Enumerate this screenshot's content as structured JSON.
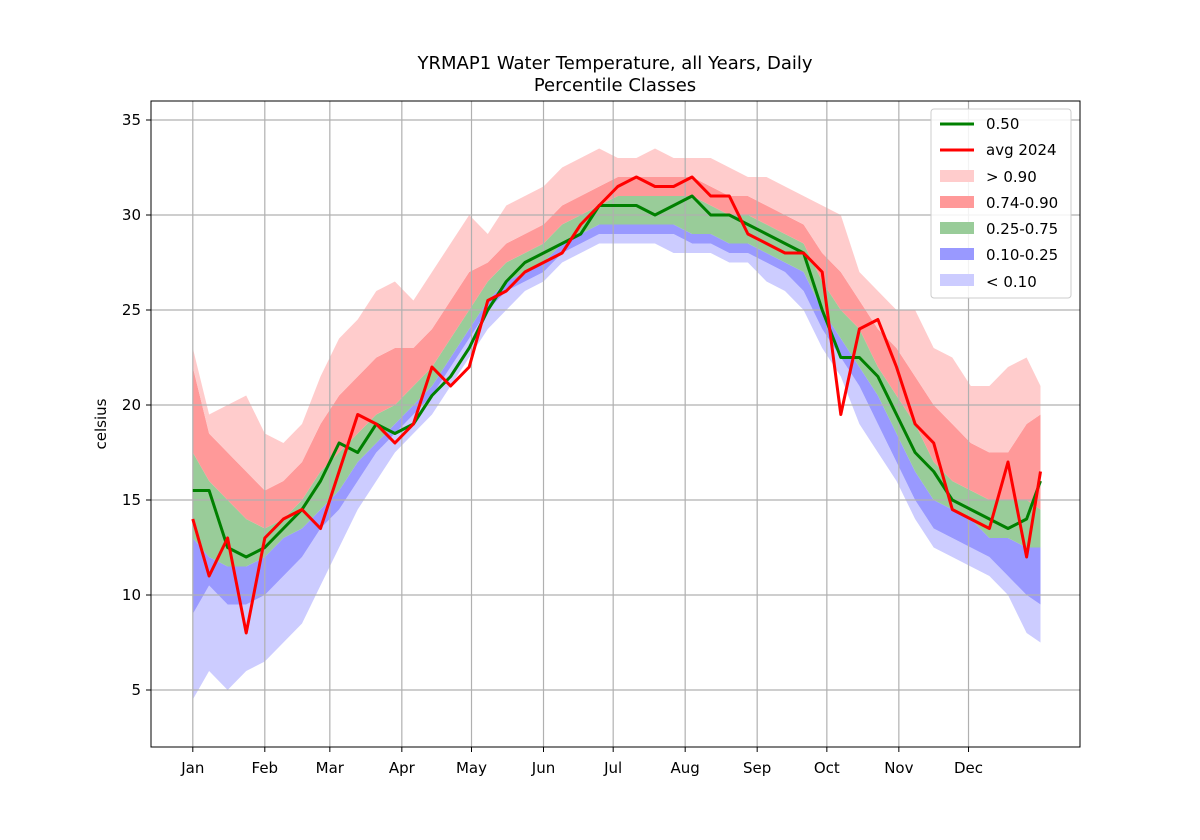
{
  "chart_data": {
    "type": "area",
    "title": "YRMAP1 Water Temperature, all Years, Daily",
    "subtitle": "Percentile Classes",
    "xlabel": "",
    "ylabel": "celsius",
    "x_ticks": [
      "Jan",
      "Feb",
      "Mar",
      "Apr",
      "May",
      "Jun",
      "Jul",
      "Aug",
      "Sep",
      "Oct",
      "Nov",
      "Dec"
    ],
    "x_tick_days": [
      1,
      32,
      60,
      91,
      121,
      152,
      182,
      213,
      244,
      274,
      305,
      335
    ],
    "xlim": [
      -17,
      383
    ],
    "y_ticks": [
      5,
      10,
      15,
      20,
      25,
      30,
      35
    ],
    "ylim": [
      2,
      36
    ],
    "grid": true,
    "legend_position": "top-right",
    "x_days": [
      1,
      8,
      16,
      24,
      32,
      40,
      48,
      56,
      64,
      72,
      80,
      88,
      96,
      104,
      112,
      120,
      128,
      136,
      144,
      152,
      160,
      168,
      176,
      184,
      192,
      200,
      208,
      216,
      224,
      232,
      240,
      248,
      256,
      264,
      272,
      280,
      288,
      296,
      304,
      312,
      320,
      328,
      336,
      344,
      352,
      360,
      366
    ],
    "series": [
      {
        "name": "< 0.10",
        "kind": "band",
        "color": "#ccccff",
        "lower": [
          4.5,
          6,
          5,
          6,
          6.5,
          7.5,
          8.5,
          10.5,
          12.5,
          14.5,
          16,
          17.5,
          18.5,
          19.5,
          21,
          22.5,
          24,
          25,
          26,
          26.5,
          27.5,
          28,
          28.5,
          28.5,
          28.5,
          28.5,
          28,
          28,
          28,
          27.5,
          27.5,
          26.5,
          26,
          25,
          23,
          21.5,
          19,
          17.5,
          16,
          14,
          12.5,
          12,
          11.5,
          11,
          10,
          8,
          7.5
        ]
      },
      {
        "name": "0.10-0.25",
        "kind": "band",
        "color": "#9999ff",
        "lower": [
          9,
          10.5,
          9.5,
          9.5,
          10,
          11,
          12,
          13.5,
          14.5,
          16,
          17.5,
          18.5,
          19.5,
          20.5,
          22,
          23.5,
          25,
          26,
          26.5,
          27,
          28,
          28.5,
          29,
          29,
          29,
          29,
          29,
          28.5,
          28.5,
          28,
          28,
          27.5,
          27,
          26,
          24,
          22.5,
          21,
          19,
          17,
          15,
          13.5,
          13,
          12.5,
          12,
          11,
          10,
          9.5
        ]
      },
      {
        "name": "0.25-0.75",
        "kind": "band",
        "color": "#99cc99",
        "lower": [
          13,
          12,
          11.5,
          11.5,
          12,
          13,
          13.5,
          14.5,
          15.5,
          17,
          18,
          19,
          20,
          21,
          22.5,
          24,
          25.5,
          26.5,
          27,
          27.5,
          28.5,
          29,
          29.5,
          29.5,
          29.5,
          29.5,
          29.5,
          29,
          29,
          28.5,
          28.5,
          28,
          27.5,
          27,
          25,
          23.5,
          22,
          20.5,
          18.5,
          16.5,
          15,
          14.5,
          14,
          13,
          13,
          12.5,
          12.5
        ],
        "upper": [
          17.5,
          16,
          15,
          14,
          13.5,
          14,
          15,
          16.5,
          17.5,
          18.5,
          19.5,
          20,
          21,
          22,
          23.5,
          25,
          26.5,
          27.5,
          28,
          28.5,
          29.5,
          30,
          30.5,
          31,
          31,
          31,
          31,
          31,
          30.5,
          30,
          30,
          29.5,
          29,
          28.5,
          26.5,
          25,
          24,
          22,
          20.5,
          19,
          17,
          16,
          15.5,
          15,
          15,
          15,
          14.5
        ]
      },
      {
        "name": "0.74-0.90",
        "kind": "band",
        "color": "#ff9999",
        "upper": [
          22,
          18.5,
          17.5,
          16.5,
          15.5,
          16,
          17,
          19,
          20.5,
          21.5,
          22.5,
          23,
          23,
          24,
          25.5,
          27,
          27.5,
          28.5,
          29,
          29.5,
          30.5,
          31,
          31.5,
          32,
          32,
          32,
          32,
          32,
          31.5,
          31,
          31,
          30.5,
          30,
          29.5,
          28,
          27,
          25.5,
          24,
          23,
          21.5,
          20,
          19,
          18,
          17.5,
          17.5,
          19,
          19.5
        ]
      },
      {
        "name": "> 0.90",
        "kind": "band",
        "color": "#ffcccc",
        "upper": [
          23,
          19.5,
          20,
          20.5,
          18.5,
          18,
          19,
          21.5,
          23.5,
          24.5,
          26,
          26.5,
          25.5,
          27,
          28.5,
          30,
          29,
          30.5,
          31,
          31.5,
          32.5,
          33,
          33.5,
          33,
          33,
          33.5,
          33,
          33,
          33,
          32.5,
          32,
          32,
          31.5,
          31,
          30.5,
          30,
          27,
          26,
          25,
          25,
          23,
          22.5,
          21,
          21,
          22,
          22.5,
          21
        ]
      },
      {
        "name": "0.50",
        "kind": "line",
        "color": "#008000",
        "values": [
          15.5,
          15.5,
          12.5,
          12,
          12.5,
          13.5,
          14.5,
          16,
          18,
          17.5,
          19,
          18.5,
          19,
          20.5,
          21.5,
          23,
          25,
          26.5,
          27.5,
          28,
          28.5,
          29,
          30.5,
          30.5,
          30.5,
          30,
          30.5,
          31,
          30,
          30,
          29.5,
          29,
          28.5,
          28,
          25,
          22.5,
          22.5,
          21.5,
          19.5,
          17.5,
          16.5,
          15,
          14.5,
          14,
          13.5,
          14,
          16
        ]
      },
      {
        "name": "avg 2024",
        "kind": "line",
        "color": "#ff0000",
        "values": [
          14,
          11,
          13,
          8,
          13,
          14,
          14.5,
          13.5,
          16.5,
          19.5,
          19,
          18,
          19,
          22,
          21,
          22,
          25.5,
          26,
          27,
          27.5,
          28,
          29.5,
          30.5,
          31.5,
          32,
          31.5,
          31.5,
          32,
          31,
          31,
          29,
          28.5,
          28,
          28,
          27,
          19.5,
          24,
          24.5,
          22,
          19,
          18,
          14.5,
          14,
          13.5,
          17,
          12,
          16.5
        ]
      }
    ],
    "legend": [
      "0.50",
      "avg 2024",
      "> 0.90",
      "0.74-0.90",
      "0.25-0.75",
      "0.10-0.25",
      "< 0.10"
    ]
  }
}
